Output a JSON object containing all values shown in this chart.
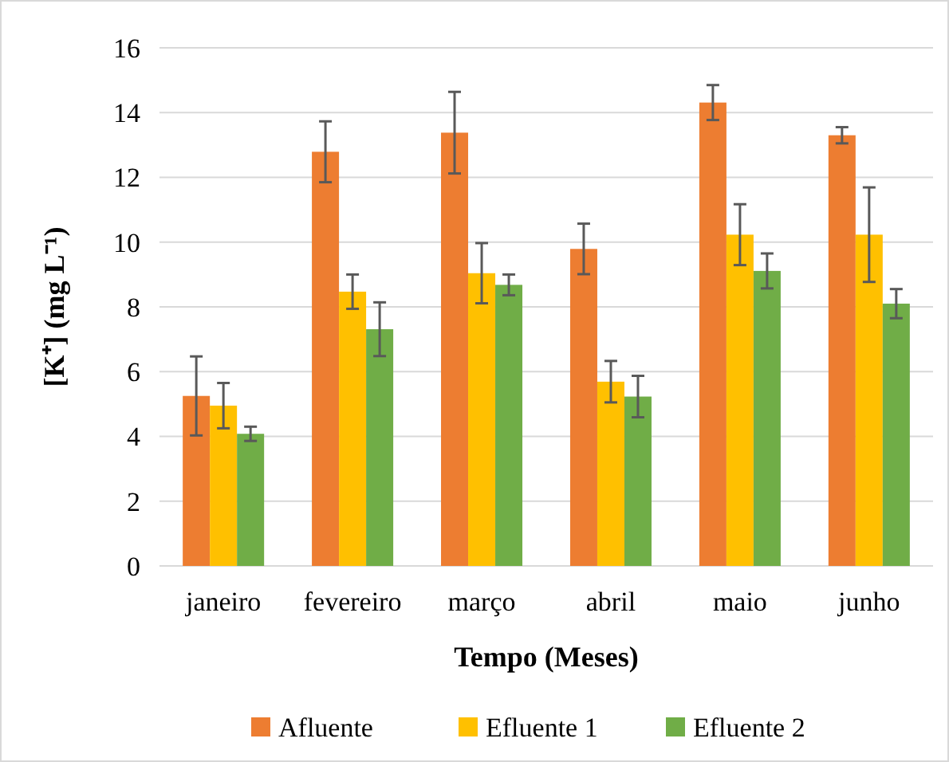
{
  "chart_data": {
    "type": "bar",
    "xlabel": "Tempo (Meses)",
    "ylabel": "[K⁺] (mg L⁻¹)",
    "categories": [
      "janeiro",
      "fevereiro",
      "março",
      "abril",
      "maio",
      "junho"
    ],
    "series": [
      {
        "name": "Afluente",
        "color": "#ed7d31",
        "values": [
          5.25,
          12.79,
          13.38,
          9.79,
          14.31,
          13.3
        ],
        "errors": [
          1.22,
          0.94,
          1.26,
          0.78,
          0.54,
          0.25
        ]
      },
      {
        "name": "Efluente 1",
        "color": "#ffc000",
        "values": [
          4.95,
          8.47,
          9.04,
          5.69,
          10.23,
          10.23
        ],
        "errors": [
          0.7,
          0.53,
          0.93,
          0.64,
          0.94,
          1.46
        ]
      },
      {
        "name": "Efluente 2",
        "color": "#70ad47",
        "values": [
          4.08,
          7.31,
          8.68,
          5.23,
          9.11,
          8.1
        ],
        "errors": [
          0.22,
          0.83,
          0.32,
          0.64,
          0.54,
          0.45
        ]
      }
    ],
    "ylim": [
      0,
      16
    ],
    "yticks": [
      0,
      2,
      4,
      6,
      8,
      10,
      12,
      14,
      16
    ],
    "grid": "y",
    "legend": "bottom"
  }
}
